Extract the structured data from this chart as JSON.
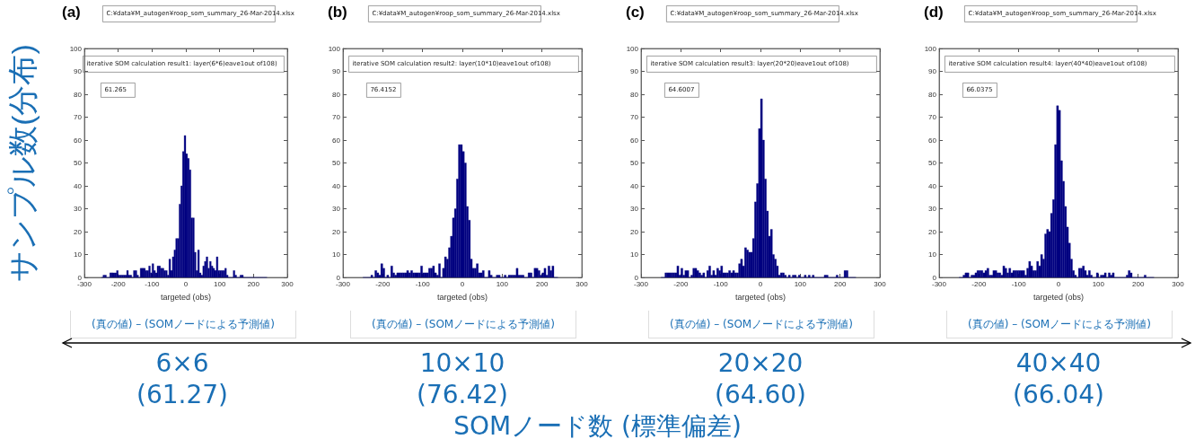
{
  "chart_data": [
    {
      "type": "histogram",
      "title": "(a)",
      "xlabel": "targeted (obs)",
      "ylabel": "サンプル数(分布)",
      "color": "#000080",
      "annotations": [
        "C:¥data¥M_autogen¥roop_som_summary_26-Mar-2014.xlsx",
        "iterative SOM calculation result1: layer(6*6)eave1out of108)",
        "61.265",
        "(真の値) – (SOMノードによる予測値)",
        "6×6",
        "(61.27)"
      ],
      "bins": [
        -250,
        -245,
        -240,
        -235,
        -230,
        -225,
        -220,
        -215,
        -210,
        -205,
        -200,
        -195,
        -190,
        -185,
        -180,
        -175,
        -170,
        -165,
        -160,
        -155,
        -150,
        -145,
        -140,
        -135,
        -130,
        -125,
        -120,
        -115,
        -110,
        -105,
        -100,
        -95,
        -90,
        -85,
        -80,
        -75,
        -70,
        -65,
        -60,
        -55,
        -50,
        -45,
        -40,
        -35,
        -30,
        -25,
        -20,
        -15,
        -10,
        -5,
        0,
        5,
        10,
        15,
        20,
        25,
        30,
        35,
        40,
        45,
        50,
        55,
        60,
        65,
        70,
        75,
        80,
        85,
        90,
        95,
        100,
        105,
        110,
        115,
        120,
        125,
        130,
        135,
        140,
        145,
        150,
        155,
        160,
        165,
        170,
        175,
        180,
        185,
        190,
        195,
        200,
        205,
        210,
        215,
        220,
        225,
        230,
        235,
        240
      ],
      "values": [
        0,
        1,
        1,
        0,
        0,
        2,
        2,
        2,
        2,
        3,
        1,
        1,
        1,
        1,
        1,
        3,
        1,
        1,
        0,
        3,
        3,
        1,
        0,
        4,
        4,
        4,
        3,
        3,
        5,
        2,
        6,
        3,
        2,
        5,
        5,
        4,
        4,
        3,
        3,
        1,
        8,
        3,
        9,
        12,
        17,
        17,
        32,
        40,
        55,
        62,
        54,
        52,
        47,
        26,
        26,
        11,
        3,
        12,
        2,
        1,
        5,
        7,
        9,
        4,
        7,
        5,
        4,
        3,
        9,
        3,
        3,
        3,
        3,
        4,
        1,
        0,
        0,
        0,
        3,
        1,
        0,
        0,
        1,
        1,
        0,
        0,
        0,
        0,
        0,
        0,
        0,
        0,
        0,
        0,
        0,
        0,
        0,
        0
      ],
      "xlim": [
        -300,
        300
      ],
      "xticks": [
        -300,
        -200,
        -100,
        0,
        100,
        200,
        300
      ],
      "ylim": [
        0,
        100
      ],
      "yticks": [
        0,
        10,
        20,
        30,
        40,
        50,
        60,
        70,
        80,
        90,
        100
      ]
    },
    {
      "type": "histogram",
      "title": "(b)",
      "xlabel": "targeted (obs)",
      "color": "#000080",
      "annotations": [
        "C:¥data¥M_autogen¥roop_som_summary_26-Mar-2014.xlsx",
        "iterative SOM calculation result2: layer(10*10)eave1out of108)",
        "76.4152",
        "(真の値) – (SOMノードによる予測値)",
        "10×10",
        "(76.42)"
      ],
      "bins": [
        -250,
        -245,
        -240,
        -235,
        -230,
        -225,
        -220,
        -215,
        -210,
        -205,
        -200,
        -195,
        -190,
        -185,
        -180,
        -175,
        -170,
        -165,
        -160,
        -155,
        -150,
        -145,
        -140,
        -135,
        -130,
        -125,
        -120,
        -115,
        -110,
        -105,
        -100,
        -95,
        -90,
        -85,
        -80,
        -75,
        -70,
        -65,
        -60,
        -55,
        -50,
        -45,
        -40,
        -35,
        -30,
        -25,
        -20,
        -15,
        -10,
        -5,
        0,
        5,
        10,
        15,
        20,
        25,
        30,
        35,
        40,
        45,
        50,
        55,
        60,
        65,
        70,
        75,
        80,
        85,
        90,
        95,
        100,
        105,
        110,
        115,
        120,
        125,
        130,
        135,
        140,
        145,
        150,
        155,
        160,
        165,
        170,
        175,
        180,
        185,
        190,
        195,
        200,
        205,
        210,
        215,
        220,
        225,
        230,
        235,
        240
      ],
      "values": [
        0,
        0,
        0,
        0,
        1,
        0,
        3,
        2,
        1,
        6,
        4,
        0,
        1,
        0,
        5,
        2,
        1,
        2,
        2,
        2,
        2,
        2,
        3,
        2,
        3,
        2,
        2,
        2,
        2,
        5,
        2,
        2,
        2,
        4,
        4,
        5,
        2,
        1,
        6,
        0,
        4,
        9,
        8,
        13,
        18,
        26,
        30,
        43,
        58,
        58,
        55,
        50,
        31,
        25,
        8,
        4,
        4,
        6,
        2,
        2,
        3,
        0,
        0,
        3,
        1,
        0,
        0,
        1,
        1,
        0,
        0,
        1,
        0,
        1,
        1,
        1,
        1,
        4,
        1,
        1,
        1,
        0,
        0,
        2,
        2,
        0,
        4,
        4,
        3,
        1,
        2,
        4,
        1,
        5,
        3,
        5,
        0,
        0
      ],
      "xlim": [
        -300,
        300
      ],
      "xticks": [
        -300,
        -200,
        -100,
        0,
        100,
        200,
        300
      ],
      "ylim": [
        0,
        100
      ],
      "yticks": [
        0,
        10,
        20,
        30,
        40,
        50,
        60,
        70,
        80,
        90,
        100
      ]
    },
    {
      "type": "histogram",
      "title": "(c)",
      "xlabel": "targeted (obs)",
      "color": "#000080",
      "annotations": [
        "C:¥data¥M_autogen¥roop_som_summary_26-Mar-2014.xlsx",
        "iterative SOM calculation result3: layer(20*20)eave1out of108)",
        "64.6007",
        "(真の値) – (SOMノードによる予測値)",
        "20×20",
        "(64.60)"
      ],
      "bins": [
        -250,
        -245,
        -240,
        -235,
        -230,
        -225,
        -220,
        -215,
        -210,
        -205,
        -200,
        -195,
        -190,
        -185,
        -180,
        -175,
        -170,
        -165,
        -160,
        -155,
        -150,
        -145,
        -140,
        -135,
        -130,
        -125,
        -120,
        -115,
        -110,
        -105,
        -100,
        -95,
        -90,
        -85,
        -80,
        -75,
        -70,
        -65,
        -60,
        -55,
        -50,
        -45,
        -40,
        -35,
        -30,
        -25,
        -20,
        -15,
        -10,
        -5,
        0,
        5,
        10,
        15,
        20,
        25,
        30,
        35,
        40,
        45,
        50,
        55,
        60,
        65,
        70,
        75,
        80,
        85,
        90,
        95,
        100,
        105,
        110,
        115,
        120,
        125,
        130,
        135,
        140,
        145,
        150,
        155,
        160,
        165,
        170,
        175,
        180,
        185,
        190,
        195,
        200,
        205,
        210,
        215,
        220,
        225,
        230,
        235,
        240
      ],
      "values": [
        0,
        0,
        2,
        2,
        2,
        2,
        2,
        2,
        5,
        1,
        4,
        1,
        3,
        3,
        0,
        1,
        4,
        4,
        3,
        2,
        1,
        2,
        0,
        3,
        5,
        1,
        3,
        1,
        4,
        3,
        5,
        2,
        2,
        2,
        3,
        2,
        3,
        2,
        2,
        6,
        8,
        5,
        13,
        12,
        11,
        11,
        17,
        33,
        41,
        65,
        78,
        60,
        43,
        29,
        18,
        21,
        10,
        8,
        5,
        1,
        2,
        2,
        1,
        0,
        1,
        0,
        1,
        1,
        0,
        1,
        0,
        0,
        1,
        0,
        1,
        0,
        1,
        0,
        0,
        0,
        0,
        0,
        1,
        1,
        0,
        0,
        0,
        0,
        1,
        0,
        0,
        0,
        3,
        3,
        0,
        0,
        0,
        0
      ],
      "xlim": [
        -300,
        300
      ],
      "xticks": [
        -300,
        -200,
        -100,
        0,
        100,
        200,
        300
      ],
      "ylim": [
        0,
        100
      ],
      "yticks": [
        0,
        10,
        20,
        30,
        40,
        50,
        60,
        70,
        80,
        90,
        100
      ]
    },
    {
      "type": "histogram",
      "title": "(d)",
      "xlabel": "targeted (obs)",
      "color": "#000080",
      "annotations": [
        "C:¥data¥M_autogen¥roop_som_summary_26-Mar-2014.xlsx",
        "iterative SOM calculation result4: layer(40*40)eave1out of108)",
        "66.0375",
        "(真の値) – (SOMノードによる予測値)",
        "40×40",
        "(66.04)",
        "SOMノード数 (標準偏差)"
      ],
      "bins": [
        -250,
        -245,
        -240,
        -235,
        -230,
        -225,
        -220,
        -215,
        -210,
        -205,
        -200,
        -195,
        -190,
        -185,
        -180,
        -175,
        -170,
        -165,
        -160,
        -155,
        -150,
        -145,
        -140,
        -135,
        -130,
        -125,
        -120,
        -115,
        -110,
        -105,
        -100,
        -95,
        -90,
        -85,
        -80,
        -75,
        -70,
        -65,
        -60,
        -55,
        -50,
        -45,
        -40,
        -35,
        -30,
        -25,
        -20,
        -15,
        -10,
        -5,
        0,
        5,
        10,
        15,
        20,
        25,
        30,
        35,
        40,
        45,
        50,
        55,
        60,
        65,
        70,
        75,
        80,
        85,
        90,
        95,
        100,
        105,
        110,
        115,
        120,
        125,
        130,
        135,
        140,
        145,
        150,
        155,
        160,
        165,
        170,
        175,
        180,
        185,
        190,
        195,
        200,
        205,
        210,
        215,
        220,
        225,
        230,
        235,
        240
      ],
      "values": [
        0,
        0,
        1,
        2,
        2,
        0,
        1,
        1,
        2,
        3,
        3,
        3,
        2,
        3,
        4,
        1,
        1,
        3,
        3,
        2,
        2,
        1,
        5,
        4,
        2,
        4,
        2,
        3,
        3,
        3,
        3,
        3,
        3,
        1,
        4,
        7,
        5,
        3,
        3,
        7,
        5,
        10,
        8,
        19,
        21,
        20,
        28,
        34,
        58,
        75,
        73,
        51,
        42,
        31,
        22,
        15,
        8,
        3,
        1,
        0,
        4,
        4,
        5,
        3,
        1,
        3,
        1,
        0,
        0,
        2,
        0,
        1,
        1,
        2,
        0,
        2,
        1,
        2,
        0,
        0,
        0,
        0,
        0,
        0,
        1,
        3,
        2,
        0,
        0,
        0,
        0,
        0,
        0,
        1,
        0,
        0,
        0,
        0
      ],
      "xlim": [
        -300,
        300
      ],
      "xticks": [
        -300,
        -200,
        -100,
        0,
        100,
        200,
        300
      ],
      "ylim": [
        0,
        100
      ],
      "yticks": [
        0,
        10,
        20,
        30,
        40,
        50,
        60,
        70,
        80,
        90,
        100
      ]
    }
  ]
}
